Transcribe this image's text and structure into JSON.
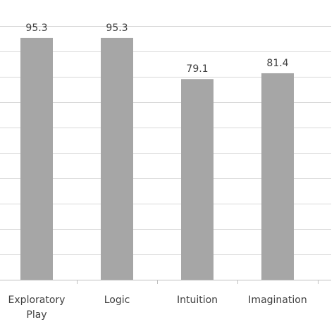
{
  "chart_data": {
    "type": "bar",
    "categories": [
      "Exploratory Play",
      "Logic",
      "Intuition",
      "Imagination"
    ],
    "category_lines": [
      [
        "Exploratory",
        "Play"
      ],
      [
        "Logic"
      ],
      [
        "Intuition"
      ],
      [
        "Imagination"
      ]
    ],
    "values": [
      95.3,
      95.3,
      79.1,
      81.4
    ],
    "value_labels": [
      "95.3",
      "95.3",
      "79.1",
      "81.4"
    ],
    "title": "",
    "xlabel": "",
    "ylabel": "",
    "ylim": [
      0,
      100
    ],
    "grid": true,
    "bar_color": "#a6a6a6",
    "grid_color": "#d9d9d9"
  }
}
